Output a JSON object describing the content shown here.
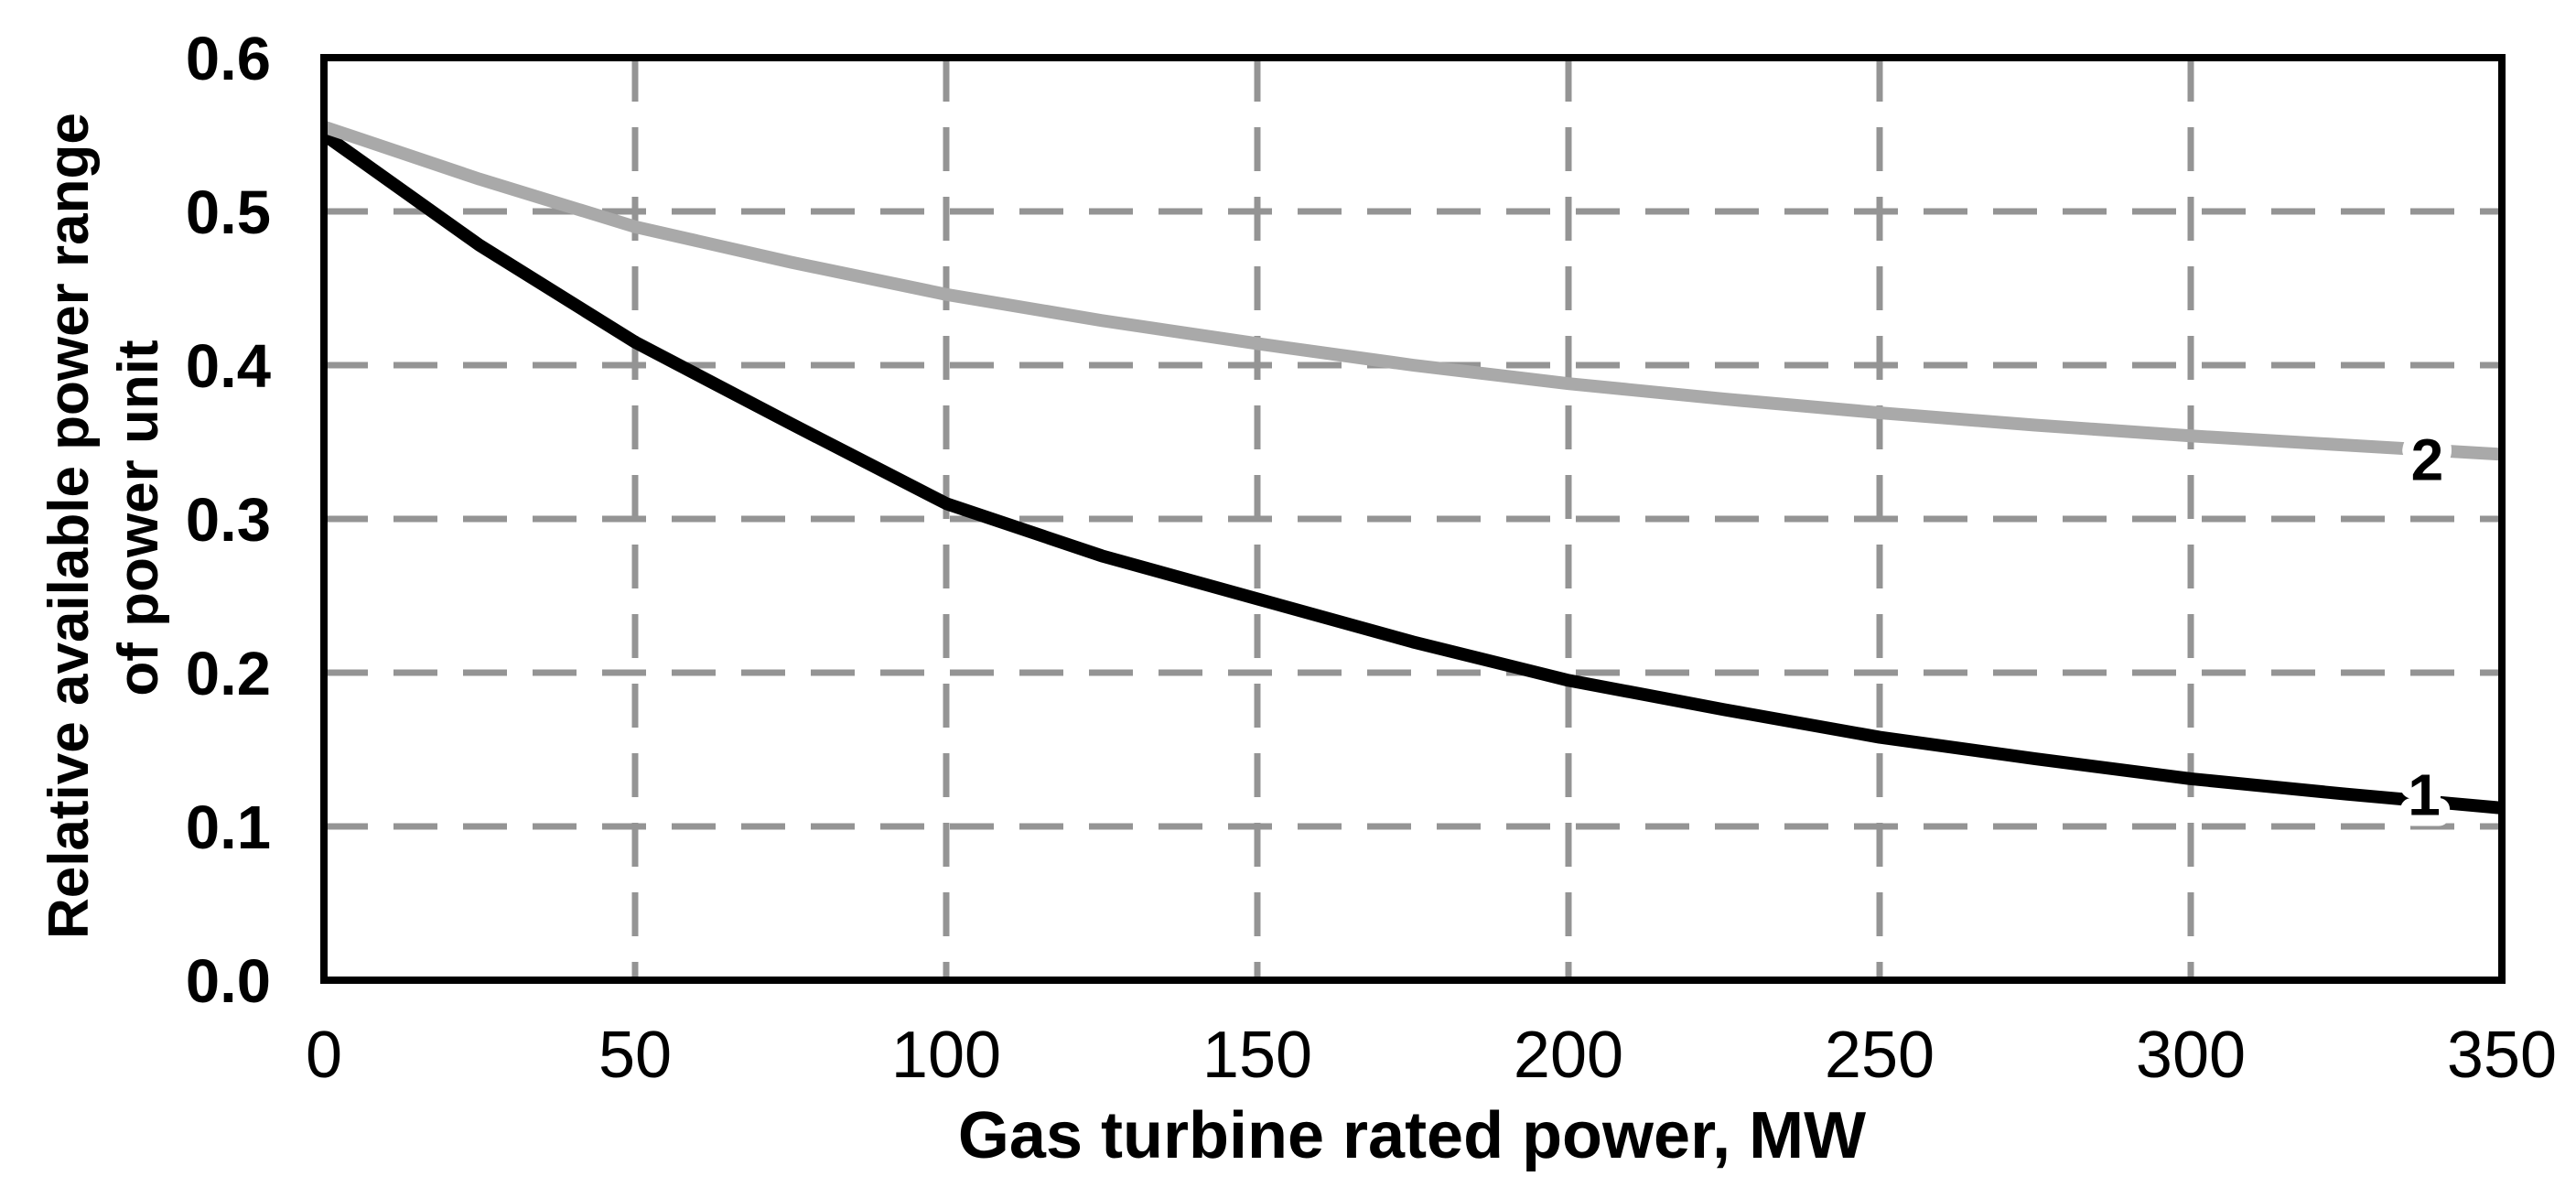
{
  "figure": {
    "background_color": "#ffffff",
    "frame_color": "#000000"
  },
  "chart_data": {
    "type": "line",
    "title": "",
    "xlabel": "Gas turbine rated power, MW",
    "ylabel": "Relative available power range of power unit",
    "ylabel_lines": [
      "Relative available power range",
      "of power unit"
    ],
    "xlim": [
      0,
      350
    ],
    "ylim": [
      0,
      0.6
    ],
    "grid": {
      "style": "dashed",
      "color": "#949494"
    },
    "legend_position": "none",
    "x_ticks": [
      {
        "value": 0,
        "label": "0"
      },
      {
        "value": 50,
        "label": "50"
      },
      {
        "value": 100,
        "label": "100"
      },
      {
        "value": 150,
        "label": "150"
      },
      {
        "value": 200,
        "label": "200"
      },
      {
        "value": 250,
        "label": "250"
      },
      {
        "value": 300,
        "label": "300"
      },
      {
        "value": 350,
        "label": "350"
      }
    ],
    "y_ticks": [
      {
        "value": 0.0,
        "label": "0.0"
      },
      {
        "value": 0.1,
        "label": "0.1"
      },
      {
        "value": 0.2,
        "label": "0.2"
      },
      {
        "value": 0.3,
        "label": "0.3"
      },
      {
        "value": 0.4,
        "label": "0.4"
      },
      {
        "value": 0.5,
        "label": "0.5"
      },
      {
        "value": 0.6,
        "label": "0.6"
      }
    ],
    "series": [
      {
        "name": "1",
        "color": "#000000",
        "line_width": 14,
        "label": {
          "text": "1",
          "x": 337.5,
          "y": 0.121
        },
        "x": [
          0,
          25,
          50,
          75,
          100,
          125,
          150,
          175,
          200,
          225,
          250,
          275,
          300,
          325,
          350
        ],
        "y": [
          0.55,
          0.478,
          0.415,
          0.362,
          0.31,
          0.276,
          0.248,
          0.22,
          0.195,
          0.176,
          0.158,
          0.144,
          0.131,
          0.121,
          0.112
        ]
      },
      {
        "name": "2",
        "color": "#a9a9a9",
        "line_width": 14,
        "label": {
          "text": "2",
          "x": 338.0,
          "y": 0.339
        },
        "x": [
          0,
          25,
          50,
          75,
          100,
          125,
          150,
          175,
          200,
          225,
          250,
          275,
          300,
          325,
          350
        ],
        "y": [
          0.555,
          0.521,
          0.49,
          0.467,
          0.446,
          0.429,
          0.414,
          0.4,
          0.388,
          0.378,
          0.369,
          0.361,
          0.354,
          0.348,
          0.342
        ]
      }
    ]
  }
}
